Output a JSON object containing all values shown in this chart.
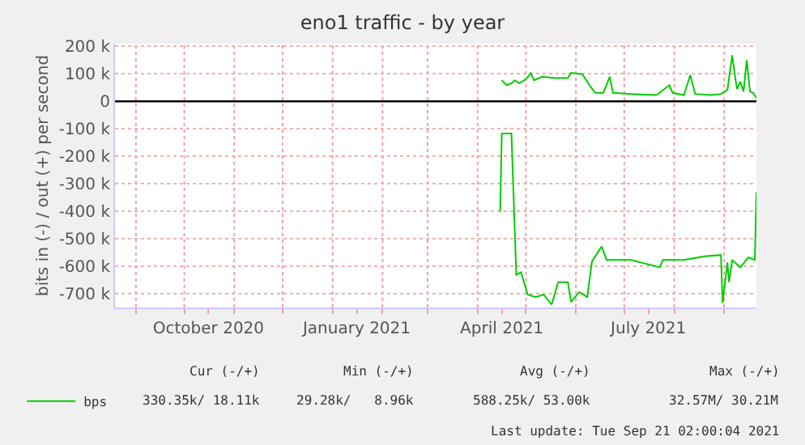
{
  "chart_data": {
    "type": "line",
    "title": "eno1 traffic - by year",
    "ylabel": "bits in (-) / out (+) per second",
    "series": [
      {
        "name": "bps",
        "color": "#00cc00",
        "x": [
          "2021-04-16",
          "2021-04-19",
          "2021-04-22",
          "2021-04-24",
          "2021-04-27",
          "2021-05-01",
          "2021-05-04",
          "2021-05-06",
          "2021-05-11",
          "2021-05-19",
          "2021-05-27",
          "2021-05-29",
          "2021-06-05",
          "2021-06-10",
          "2021-06-13",
          "2021-06-18",
          "2021-06-22",
          "2021-06-24",
          "2021-07-05",
          "2021-07-21",
          "2021-07-29",
          "2021-07-31",
          "2021-08-07",
          "2021-08-11",
          "2021-08-14",
          "2021-08-24",
          "2021-08-30",
          "2021-09-03",
          "2021-09-06",
          "2021-09-08",
          "2021-09-09",
          "2021-09-11",
          "2021-09-13",
          "2021-09-15",
          "2021-09-17",
          "2021-09-19",
          "2021-09-21"
        ],
        "values": [
          77000,
          59000,
          66000,
          77000,
          66000,
          81000,
          103000,
          77000,
          90000,
          85000,
          85000,
          104000,
          99000,
          54000,
          31000,
          31000,
          90000,
          31000,
          27000,
          23000,
          59000,
          31000,
          23000,
          96000,
          27000,
          23000,
          27000,
          41000,
          168000,
          81000,
          45000,
          72000,
          36000,
          150000,
          36000,
          31000,
          12000
        ]
      },
      {
        "color": "#00cc00",
        "x": [
          "2021-04-15",
          "2021-04-16",
          "2021-04-22",
          "2021-04-25",
          "2021-04-28",
          "2021-05-02",
          "2021-05-07",
          "2021-05-12",
          "2021-05-17",
          "2021-05-21",
          "2021-05-27",
          "2021-05-29",
          "2021-06-03",
          "2021-06-08",
          "2021-06-11",
          "2021-06-17",
          "2021-06-20",
          "2021-07-05",
          "2021-07-23",
          "2021-07-25",
          "2021-08-07",
          "2021-08-20",
          "2021-08-30",
          "2021-08-31",
          "2021-09-03",
          "2021-09-04",
          "2021-09-06",
          "2021-09-11",
          "2021-09-16",
          "2021-09-20",
          "2021-09-21"
        ],
        "values": [
          -402000,
          -117000,
          -117000,
          -631000,
          -622000,
          -703000,
          -712000,
          -703000,
          -739000,
          -658000,
          -658000,
          -730000,
          -694000,
          -712000,
          -582000,
          -528000,
          -577000,
          -577000,
          -604000,
          -577000,
          -577000,
          -564000,
          -559000,
          -734000,
          -586000,
          -658000,
          -577000,
          -604000,
          -568000,
          -577000,
          -330000
        ]
      }
    ],
    "xlim": [
      "2020-08-19",
      "2021-09-21"
    ],
    "xticks": [
      {
        "value": "2020-09-01",
        "label": null
      },
      {
        "value": "2020-10-01",
        "label": null
      },
      {
        "value": "2020-10-16",
        "label": "October 2020"
      },
      {
        "value": "2020-11-01",
        "label": null
      },
      {
        "value": "2020-12-01",
        "label": null
      },
      {
        "value": "2021-01-01",
        "label": null
      },
      {
        "value": "2021-01-16",
        "label": "January 2021"
      },
      {
        "value": "2021-02-01",
        "label": null
      },
      {
        "value": "2021-03-01",
        "label": null
      },
      {
        "value": "2021-04-01",
        "label": null
      },
      {
        "value": "2021-04-16",
        "label": "April 2021"
      },
      {
        "value": "2021-05-01",
        "label": null
      },
      {
        "value": "2021-06-01",
        "label": null
      },
      {
        "value": "2021-07-01",
        "label": null
      },
      {
        "value": "2021-07-16",
        "label": "July 2021"
      },
      {
        "value": "2021-08-01",
        "label": null
      },
      {
        "value": "2021-09-01",
        "label": null
      }
    ],
    "ylim": [
      -750000,
      210000
    ],
    "yticks": [
      {
        "value": 200000,
        "label": "200 k"
      },
      {
        "value": 100000,
        "label": "100 k"
      },
      0,
      {
        "value": -100000,
        "label": "-100 k"
      },
      {
        "value": -200000,
        "label": "-200 k"
      },
      {
        "value": -300000,
        "label": "-300 k"
      },
      {
        "value": -400000,
        "label": "-400 k"
      },
      {
        "value": -500000,
        "label": "-500 k"
      },
      {
        "value": -600000,
        "label": "-600 k"
      },
      {
        "value": -700000,
        "label": "-700 k"
      }
    ],
    "ref_lines": [
      {
        "axis": "y",
        "value": 0,
        "color": "#000000"
      }
    ],
    "grid": true,
    "legend": "bottom left",
    "marker": "none",
    "line_style": "solid",
    "annotations": [
      "Cur (-/+)",
      "Min (-/+)",
      "Avg (-/+)",
      "Max (-/+)",
      "330.35k/ 18.11k",
      "29.28k/   8.96k",
      "588.25k/ 53.00k",
      "32.57M/ 30.21M",
      "Last update: Tue Sep 21 02:00:04 2021"
    ]
  }
}
